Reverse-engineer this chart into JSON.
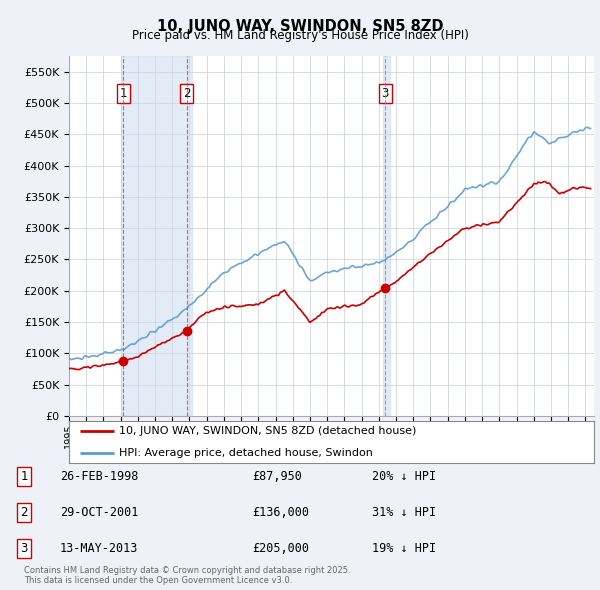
{
  "title": "10, JUNO WAY, SWINDON, SN5 8ZD",
  "subtitle": "Price paid vs. HM Land Registry's House Price Index (HPI)",
  "background_color": "#eef2f8",
  "plot_bg_color": "#ffffff",
  "ylim": [
    0,
    575000
  ],
  "yticks": [
    0,
    50000,
    100000,
    150000,
    200000,
    250000,
    300000,
    350000,
    400000,
    450000,
    500000,
    550000
  ],
  "xlim_start": 1995.0,
  "xlim_end": 2025.5,
  "sale_dates": [
    1998.15,
    2001.83,
    2013.37
  ],
  "sale_prices": [
    87950,
    136000,
    205000
  ],
  "sale_labels": [
    "1",
    "2",
    "3"
  ],
  "vline_colors": [
    "#d04040",
    "#d04040",
    "#888888"
  ],
  "vline_styles": [
    "--",
    "--",
    "--"
  ],
  "sale_marker_color": "#cc0000",
  "hpi_line_color": "#5b9bd5",
  "sale_line_color": "#cc0000",
  "shade_span": [
    1998.15,
    2001.83
  ],
  "shade_color": "#c8d8ef",
  "shade_alpha": 0.5,
  "legend_label_sale": "10, JUNO WAY, SWINDON, SN5 8ZD (detached house)",
  "legend_label_hpi": "HPI: Average price, detached house, Swindon",
  "table_rows": [
    {
      "num": "1",
      "date": "26-FEB-1998",
      "price": "£87,950",
      "pct": "20% ↓ HPI"
    },
    {
      "num": "2",
      "date": "29-OCT-2001",
      "price": "£136,000",
      "pct": "31% ↓ HPI"
    },
    {
      "num": "3",
      "date": "13-MAY-2013",
      "price": "£205,000",
      "pct": "19% ↓ HPI"
    }
  ],
  "footer": "Contains HM Land Registry data © Crown copyright and database right 2025.\nThis data is licensed under the Open Government Licence v3.0."
}
